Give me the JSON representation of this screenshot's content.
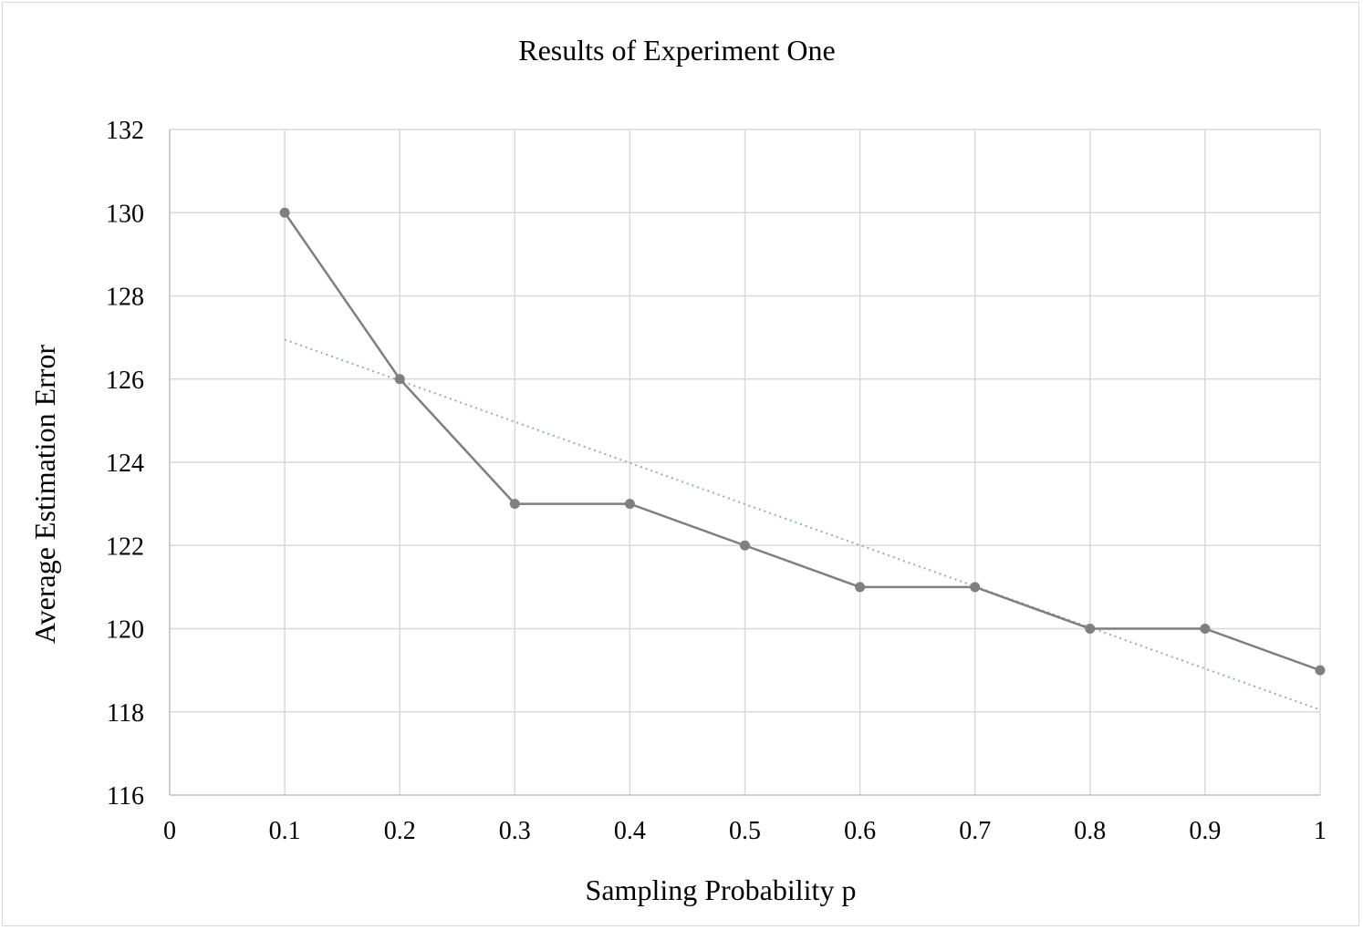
{
  "chart_data": {
    "type": "line",
    "title": "Results of Experiment One",
    "xlabel": "Sampling Probability p",
    "ylabel": "Average Estimation Error",
    "xlim": [
      0,
      1
    ],
    "ylim": [
      116,
      132
    ],
    "x_ticks": [
      "0",
      "0.1",
      "0.2",
      "0.3",
      "0.4",
      "0.5",
      "0.6",
      "0.7",
      "0.8",
      "0.9",
      "1"
    ],
    "y_ticks": [
      "116",
      "118",
      "120",
      "122",
      "124",
      "126",
      "128",
      "130",
      "132"
    ],
    "grid": true,
    "legend": "none",
    "series": [
      {
        "x": [
          0.1,
          0.2,
          0.3,
          0.4,
          0.5,
          0.6,
          0.7,
          0.8,
          0.9,
          1.0
        ],
        "values": [
          130,
          126,
          123,
          123,
          122,
          121,
          121,
          120,
          120,
          119
        ],
        "color": "#7f7f7f"
      }
    ],
    "trendline": {
      "kind": "linear",
      "x": [
        0.1,
        1.0
      ],
      "values": [
        126.95,
        118.05
      ],
      "color": "#8eaadb",
      "style": "dotted"
    }
  }
}
